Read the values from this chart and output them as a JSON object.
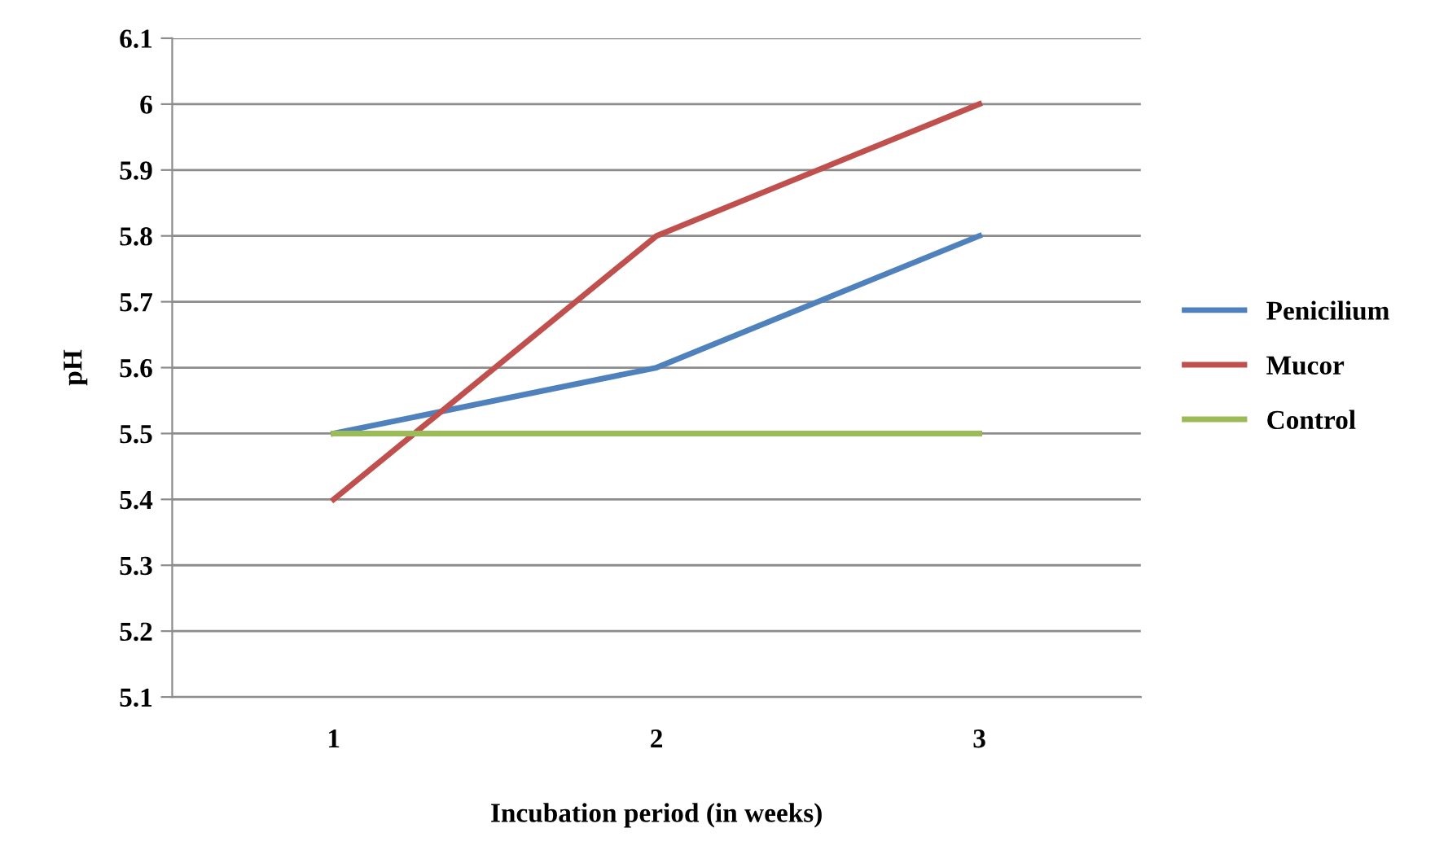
{
  "chart_data": {
    "type": "line",
    "xlabel": "Incubation period (in weeks)",
    "ylabel": "pH",
    "categories": [
      "1",
      "2",
      "3"
    ],
    "series": [
      {
        "name": "Penicilium",
        "color": "#4f81bd",
        "values": [
          5.5,
          5.6,
          5.8
        ]
      },
      {
        "name": "Mucor",
        "color": "#c0504d",
        "values": [
          5.4,
          5.8,
          6.0
        ]
      },
      {
        "name": "Control",
        "color": "#9bbb59",
        "values": [
          5.5,
          5.5,
          5.5
        ]
      }
    ],
    "ylim": [
      5.1,
      6.1
    ],
    "yticks": [
      5.1,
      5.2,
      5.3,
      5.4,
      5.5,
      5.6,
      5.7,
      5.8,
      5.9,
      6,
      6.1
    ],
    "grid": "y",
    "legend": "right",
    "marker": "none",
    "line_style": "solid"
  }
}
